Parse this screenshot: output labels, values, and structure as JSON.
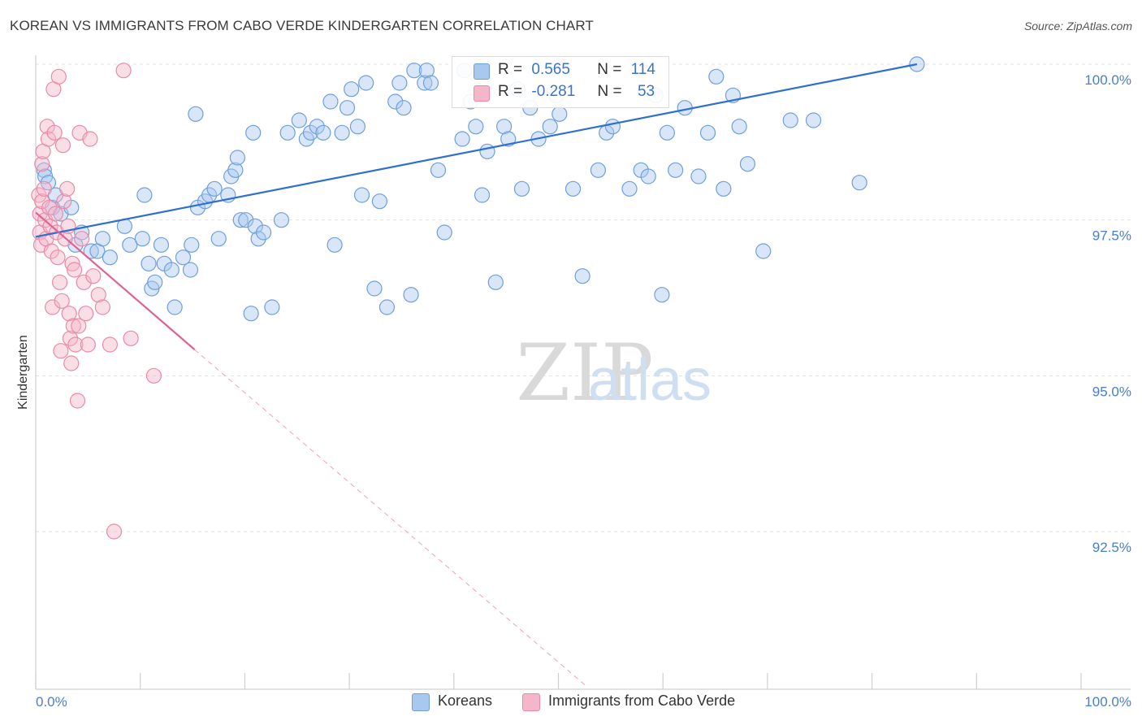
{
  "title": "KOREAN VS IMMIGRANTS FROM CABO VERDE KINDERGARTEN CORRELATION CHART",
  "source": "Source: ZipAtlas.com",
  "colors": {
    "blue_fill": "#a9c8ef",
    "blue_stroke": "#6f9fdc",
    "blue_line": "#2f6fce",
    "pink_fill": "#f4b6c8",
    "pink_stroke": "#e88aa8",
    "pink_line": "#e0638e",
    "grid": "#e2e2e2",
    "tick_text": "#4a7fc8"
  },
  "legend": {
    "rows": [
      {
        "r_label": "R =",
        "r_value": "0.565",
        "n_label": "N =",
        "n_value": "114"
      },
      {
        "r_label": "R =",
        "r_value": "-0.281",
        "n_label": "N =",
        "n_value": "53"
      }
    ]
  },
  "chart_data": {
    "type": "scatter",
    "title": "KOREAN VS IMMIGRANTS FROM CABO VERDE KINDERGARTEN CORRELATION CHART",
    "xlabel": "",
    "ylabel": "Kindergarten",
    "xlim": [
      0,
      100
    ],
    "ylim": [
      90.0,
      100.2
    ],
    "x_tick_labels": [
      "0.0%",
      "100.0%"
    ],
    "y_ticks": [
      92.5,
      95.0,
      97.5,
      100.0
    ],
    "y_tick_labels": [
      "92.5%",
      "95.0%",
      "97.5%",
      "100.0%"
    ],
    "grid": true,
    "legend_position": "bottom",
    "watermark": "ZIPatlas",
    "series": [
      {
        "name": "Koreans",
        "color": "#a9c8ef",
        "trend": {
          "x": [
            0,
            84.3
          ],
          "y": [
            97.23,
            100.0
          ]
        },
        "points": [
          [
            0.8,
            98.3
          ],
          [
            0.9,
            98.2
          ],
          [
            1.2,
            98.1
          ],
          [
            1.6,
            97.7
          ],
          [
            1.9,
            97.9
          ],
          [
            2.4,
            97.6
          ],
          [
            3.4,
            97.7
          ],
          [
            3.8,
            97.1
          ],
          [
            4.4,
            97.3
          ],
          [
            5.3,
            97.0
          ],
          [
            5.9,
            97.0
          ],
          [
            6.4,
            97.2
          ],
          [
            7.1,
            96.9
          ],
          [
            8.5,
            97.4
          ],
          [
            9.0,
            97.1
          ],
          [
            10.2,
            97.2
          ],
          [
            10.4,
            97.9
          ],
          [
            10.8,
            96.8
          ],
          [
            11.1,
            96.4
          ],
          [
            11.4,
            96.5
          ],
          [
            12.0,
            97.1
          ],
          [
            12.3,
            96.8
          ],
          [
            13.0,
            96.7
          ],
          [
            13.3,
            96.1
          ],
          [
            14.1,
            96.9
          ],
          [
            14.8,
            96.7
          ],
          [
            14.9,
            97.1
          ],
          [
            15.3,
            99.2
          ],
          [
            15.5,
            97.7
          ],
          [
            16.2,
            97.8
          ],
          [
            16.6,
            97.9
          ],
          [
            17.1,
            98.0
          ],
          [
            17.5,
            97.2
          ],
          [
            18.4,
            97.9
          ],
          [
            18.7,
            98.2
          ],
          [
            19.1,
            98.3
          ],
          [
            19.3,
            98.5
          ],
          [
            19.6,
            97.5
          ],
          [
            20.1,
            97.5
          ],
          [
            20.6,
            96.0
          ],
          [
            20.8,
            98.9
          ],
          [
            21.0,
            97.4
          ],
          [
            21.3,
            97.2
          ],
          [
            21.8,
            97.3
          ],
          [
            22.6,
            96.1
          ],
          [
            23.5,
            97.5
          ],
          [
            24.1,
            98.9
          ],
          [
            25.2,
            99.1
          ],
          [
            25.9,
            98.8
          ],
          [
            26.3,
            98.9
          ],
          [
            26.9,
            99.0
          ],
          [
            27.5,
            98.9
          ],
          [
            28.2,
            99.4
          ],
          [
            28.6,
            97.1
          ],
          [
            29.3,
            98.9
          ],
          [
            29.8,
            99.3
          ],
          [
            30.2,
            99.6
          ],
          [
            30.8,
            99.0
          ],
          [
            31.2,
            97.9
          ],
          [
            31.6,
            99.7
          ],
          [
            32.4,
            96.4
          ],
          [
            32.9,
            97.8
          ],
          [
            33.6,
            96.1
          ],
          [
            34.4,
            99.4
          ],
          [
            34.8,
            99.7
          ],
          [
            35.2,
            99.3
          ],
          [
            35.9,
            96.3
          ],
          [
            36.2,
            99.9
          ],
          [
            37.2,
            99.7
          ],
          [
            37.4,
            99.9
          ],
          [
            37.8,
            99.7
          ],
          [
            38.5,
            98.3
          ],
          [
            39.1,
            97.3
          ],
          [
            40.8,
            98.8
          ],
          [
            41.0,
            99.9
          ],
          [
            41.6,
            99.4
          ],
          [
            42.1,
            99.0
          ],
          [
            42.7,
            97.9
          ],
          [
            43.2,
            98.6
          ],
          [
            44.0,
            96.5
          ],
          [
            44.8,
            99.0
          ],
          [
            45.2,
            98.8
          ],
          [
            46.1,
            99.6
          ],
          [
            46.5,
            98.0
          ],
          [
            47.3,
            99.3
          ],
          [
            48.1,
            98.8
          ],
          [
            49.2,
            99.0
          ],
          [
            49.8,
            99.5
          ],
          [
            50.1,
            99.2
          ],
          [
            51.4,
            98.0
          ],
          [
            52.3,
            96.6
          ],
          [
            53.8,
            98.3
          ],
          [
            54.6,
            98.9
          ],
          [
            55.2,
            99.0
          ],
          [
            56.8,
            98.0
          ],
          [
            57.9,
            98.3
          ],
          [
            58.6,
            98.2
          ],
          [
            59.3,
            99.5
          ],
          [
            59.9,
            96.3
          ],
          [
            60.4,
            98.9
          ],
          [
            61.2,
            98.3
          ],
          [
            62.1,
            99.3
          ],
          [
            63.4,
            98.2
          ],
          [
            64.3,
            98.9
          ],
          [
            65.1,
            99.8
          ],
          [
            65.8,
            98.0
          ],
          [
            66.7,
            99.5
          ],
          [
            67.3,
            99.0
          ],
          [
            68.1,
            98.4
          ],
          [
            69.6,
            97.0
          ],
          [
            72.2,
            99.1
          ],
          [
            74.4,
            99.1
          ],
          [
            78.8,
            98.1
          ],
          [
            84.3,
            100.0
          ]
        ]
      },
      {
        "name": "Immigrants from Cabo Verde",
        "color": "#f4b6c8",
        "trend": {
          "x": [
            0,
            15.2
          ],
          "y": [
            97.62,
            95.42
          ]
        },
        "trend_extension": {
          "x": [
            15.2,
            52.8
          ],
          "y": [
            95.42,
            90.0
          ]
        },
        "points": [
          [
            0.3,
            97.9
          ],
          [
            0.4,
            97.6
          ],
          [
            0.4,
            97.3
          ],
          [
            0.5,
            97.1
          ],
          [
            0.6,
            97.8
          ],
          [
            0.6,
            98.4
          ],
          [
            0.7,
            98.6
          ],
          [
            0.8,
            98.0
          ],
          [
            0.9,
            97.5
          ],
          [
            1.0,
            97.2
          ],
          [
            1.1,
            99.0
          ],
          [
            1.2,
            98.8
          ],
          [
            1.3,
            97.7
          ],
          [
            1.4,
            97.4
          ],
          [
            1.5,
            97.0
          ],
          [
            1.6,
            96.1
          ],
          [
            1.7,
            99.6
          ],
          [
            1.8,
            98.9
          ],
          [
            1.9,
            97.6
          ],
          [
            2.0,
            97.3
          ],
          [
            2.1,
            96.9
          ],
          [
            2.2,
            99.8
          ],
          [
            2.3,
            96.5
          ],
          [
            2.4,
            95.4
          ],
          [
            2.5,
            96.2
          ],
          [
            2.6,
            98.7
          ],
          [
            2.7,
            97.8
          ],
          [
            2.8,
            97.2
          ],
          [
            3.0,
            98.0
          ],
          [
            3.1,
            97.4
          ],
          [
            3.2,
            96.0
          ],
          [
            3.3,
            95.6
          ],
          [
            3.4,
            95.2
          ],
          [
            3.5,
            96.8
          ],
          [
            3.6,
            95.8
          ],
          [
            3.7,
            96.7
          ],
          [
            3.8,
            95.5
          ],
          [
            4.0,
            94.6
          ],
          [
            4.1,
            95.8
          ],
          [
            4.2,
            98.9
          ],
          [
            4.4,
            97.2
          ],
          [
            4.6,
            96.5
          ],
          [
            4.8,
            96.0
          ],
          [
            5.0,
            95.5
          ],
          [
            5.2,
            98.8
          ],
          [
            5.5,
            96.6
          ],
          [
            6.0,
            96.3
          ],
          [
            6.4,
            96.1
          ],
          [
            7.1,
            95.5
          ],
          [
            7.5,
            92.5
          ],
          [
            8.4,
            99.9
          ],
          [
            9.1,
            95.6
          ],
          [
            11.3,
            95.0
          ]
        ]
      }
    ]
  }
}
